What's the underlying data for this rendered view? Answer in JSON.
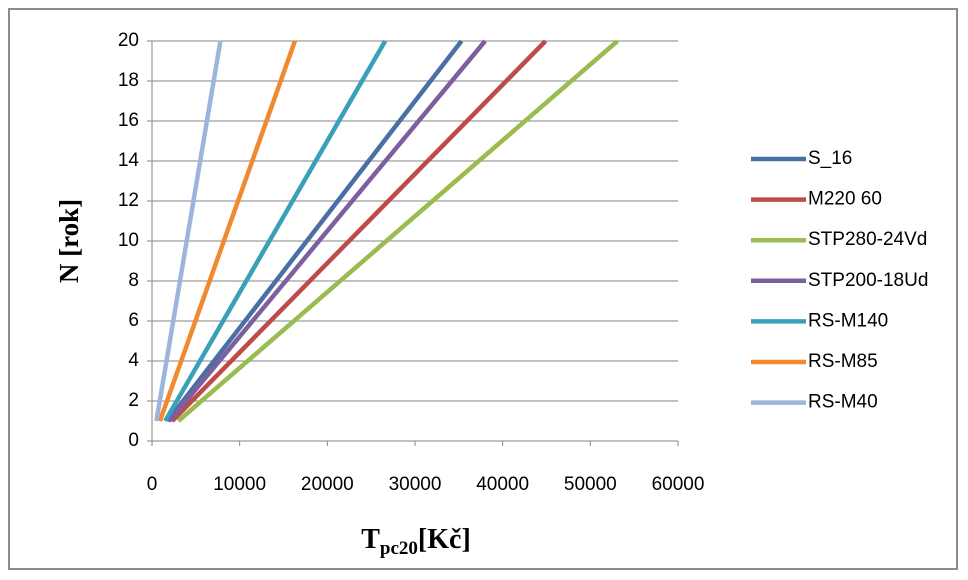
{
  "chart_data": {
    "type": "line",
    "xlabel": {
      "main": "T",
      "sub": "pc20",
      "rest": "[Kč]"
    },
    "ylabel": "N [rok]",
    "xlim": [
      0,
      60000
    ],
    "ylim": [
      0,
      20
    ],
    "x_ticks": [
      "0",
      "10000",
      "20000",
      "30000",
      "40000",
      "50000",
      "60000"
    ],
    "y_ticks": [
      "0",
      "2",
      "4",
      "6",
      "8",
      "10",
      "12",
      "14",
      "16",
      "18",
      "20"
    ],
    "grid": true,
    "legend_position": "right",
    "series": [
      {
        "name": "S_16",
        "color": "#4a6fa5",
        "points": [
          [
            1780,
            1
          ],
          [
            35300,
            20
          ]
        ]
      },
      {
        "name": "M220 60",
        "color": "#bf4b48",
        "points": [
          [
            2300,
            1
          ],
          [
            44900,
            20
          ]
        ]
      },
      {
        "name": "STP280-24Vd",
        "color": "#99bb4f",
        "points": [
          [
            3000,
            1
          ],
          [
            53100,
            20
          ]
        ]
      },
      {
        "name": "STP200-18Ud",
        "color": "#7d5fa0",
        "points": [
          [
            2000,
            1
          ],
          [
            38000,
            20
          ]
        ]
      },
      {
        "name": "RS-M140",
        "color": "#3aa0b9",
        "points": [
          [
            1500,
            1
          ],
          [
            26600,
            20
          ]
        ]
      },
      {
        "name": "RS-M85",
        "color": "#f08a2e",
        "points": [
          [
            900,
            1
          ],
          [
            16300,
            20
          ]
        ]
      },
      {
        "name": "RS-M40",
        "color": "#9db4dc",
        "points": [
          [
            500,
            1
          ],
          [
            7800,
            20
          ]
        ]
      }
    ]
  }
}
